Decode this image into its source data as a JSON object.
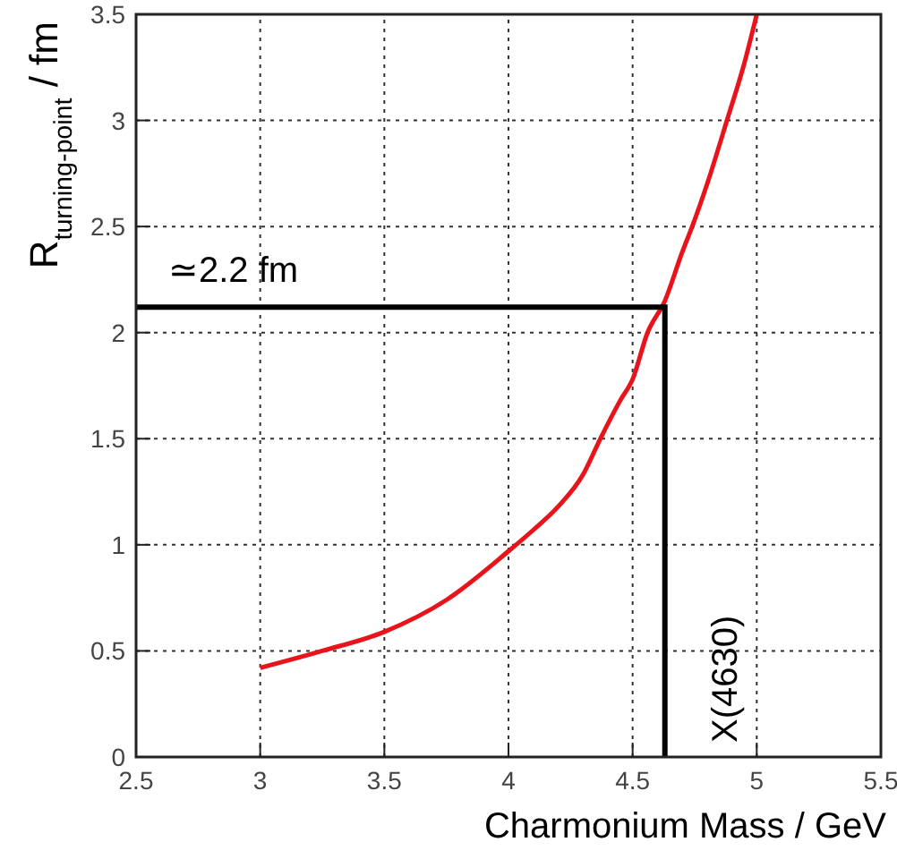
{
  "chart_data": {
    "type": "line",
    "xlabel": "Charmonium Mass / GeV",
    "ylabel": "R$_{turning-point}$ / fm",
    "x": [
      3.0,
      3.25,
      3.5,
      3.75,
      4.0,
      4.1,
      4.2,
      4.3,
      4.37,
      4.45,
      4.5,
      4.56,
      4.63,
      4.7,
      4.74,
      4.8,
      4.88,
      4.95,
      5.0
    ],
    "series": [
      {
        "color": "#e8141c",
        "values": [
          0.42,
          0.5,
          0.59,
          0.74,
          0.97,
          1.07,
          1.18,
          1.33,
          1.5,
          1.68,
          1.78,
          2.0,
          2.15,
          2.38,
          2.5,
          2.7,
          3.0,
          3.27,
          3.5
        ]
      }
    ],
    "xlim": [
      2.5,
      5.5
    ],
    "xticks": [
      2.5,
      3,
      3.5,
      4,
      4.5,
      5,
      5.5
    ],
    "ylim": [
      0,
      3.5
    ],
    "yticks": [
      0,
      0.5,
      1,
      1.5,
      2,
      2.5,
      3,
      3.5
    ],
    "grid": true,
    "marker": "none",
    "line_style": "solid",
    "ref_lines": [
      {
        "axis": "y",
        "value": 2.12,
        "label": "≃2.2 fm",
        "color": "#000000"
      },
      {
        "axis": "x",
        "value": 4.63,
        "label": "X(4630)",
        "color": "#000000"
      }
    ]
  }
}
